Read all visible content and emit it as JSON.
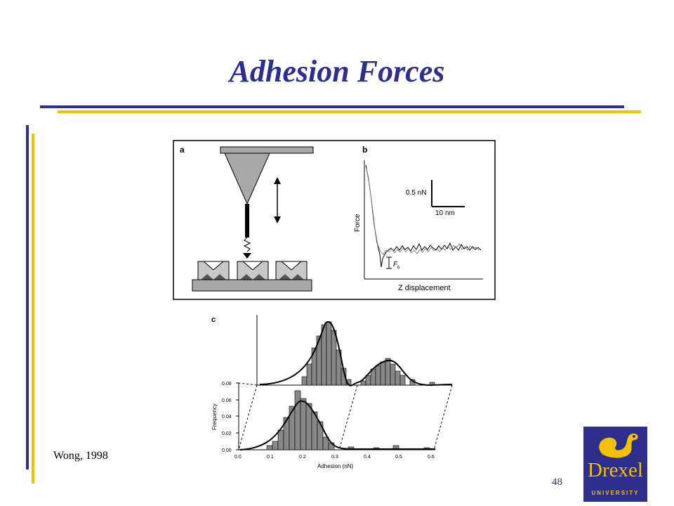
{
  "slide": {
    "title": "Adhesion Forces",
    "citation": "Wong, 1998",
    "page_number": "48"
  },
  "figure": {
    "panel_a_label": "a",
    "panel_b_label": "b",
    "panel_c_label": "c",
    "scale_force": "0.5 nN",
    "scale_distance": "10 nm",
    "force_axis_label": "Force",
    "z_axis_label": "Z displacement",
    "fb_label": "F",
    "fb_sub": "b",
    "hist_xlabel": "Adhesion (nN)",
    "hist_ylabel": "Frequency",
    "hist_yticks": [
      "0.08",
      "0.06",
      "0.04",
      "0.02",
      "0.00"
    ],
    "hist_xticks": [
      "0.0",
      "0.1",
      "0.2",
      "0.3",
      "0.4",
      "0.5",
      "0.6"
    ]
  },
  "logo": {
    "name": "Drexel",
    "subtitle": "UNIVERSITY"
  },
  "colors": {
    "blue": "#2e2e8c",
    "gold": "#f2c200"
  }
}
